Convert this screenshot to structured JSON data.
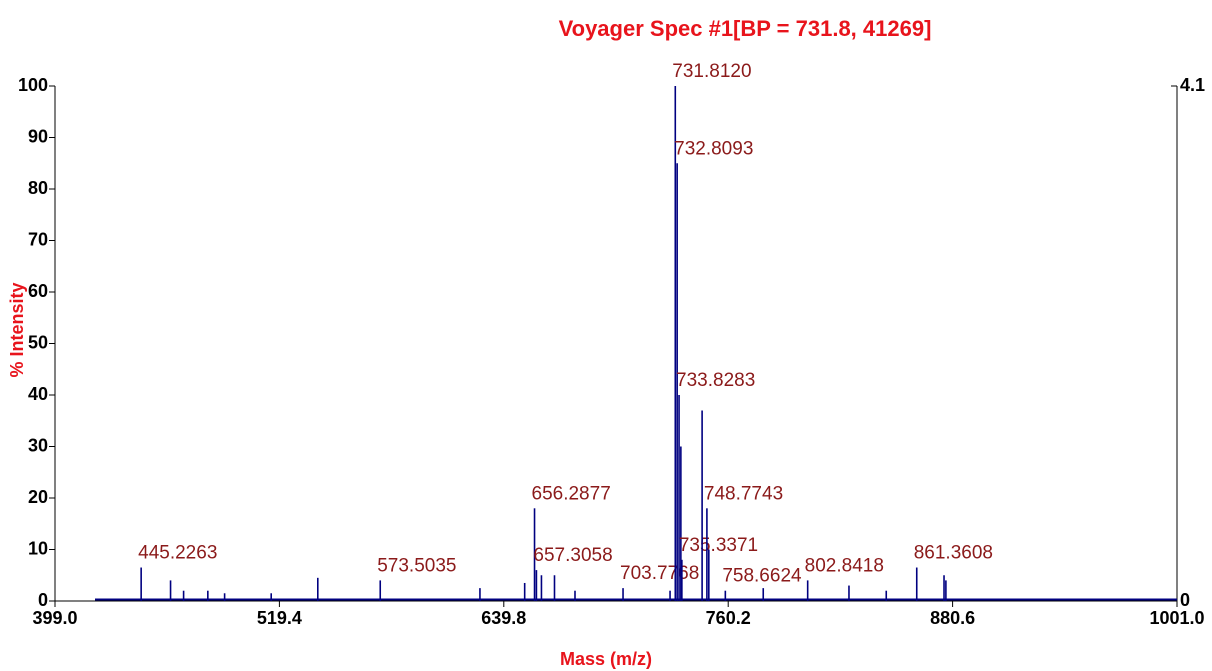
{
  "chart_data": {
    "type": "spectrum",
    "title": "Voyager Spec #1[BP = 731.8, 41269]",
    "x_label": "Mass (m/z)",
    "y_label": "% Intensity",
    "color": "#000080",
    "x": [
      445.2263,
      461.0,
      468.0,
      481.0,
      490.0,
      515.0,
      540.0,
      573.5035,
      627.0,
      651.0,
      656.2877,
      657.3058,
      660.0,
      667.0,
      678.0,
      703.7768,
      729.0,
      731.812,
      732.8093,
      733.8283,
      734.8,
      735.3371,
      746.2,
      748.7743,
      749.8,
      758.6624,
      779.0,
      802.8418,
      825.0,
      845.0,
      861.3608,
      876.0,
      877.0
    ],
    "values": [
      6.5,
      4,
      2,
      2,
      1.5,
      1.5,
      4.5,
      4,
      2.5,
      3.5,
      18,
      6,
      5,
      5,
      2,
      2.5,
      2,
      100,
      85,
      40,
      30,
      8,
      37,
      18,
      10,
      2,
      2.5,
      4,
      3,
      2,
      6.5,
      5,
      4
    ],
    "x_labels": [
      "445.2263",
      null,
      null,
      null,
      null,
      null,
      null,
      "573.5035",
      null,
      null,
      "656.2877",
      "657.3058",
      null,
      null,
      null,
      "703.7768",
      null,
      "731.8120",
      "732.8093",
      "733.8283",
      null,
      "735.3371",
      null,
      "748.7743",
      null,
      "758.6624",
      null,
      "802.8418",
      null,
      null,
      "861.3608",
      null,
      null
    ],
    "xlim": [
      399.0,
      1001.0
    ],
    "xticks": [
      {
        "value": 399,
        "label": "399.0"
      },
      {
        "value": 519.4,
        "label": "519.4"
      },
      {
        "value": 639.8,
        "label": "639.8"
      },
      {
        "value": 760.2,
        "label": "760.2"
      },
      {
        "value": 880.6,
        "label": "880.6"
      },
      {
        "value": 1001,
        "label": "1001.0"
      }
    ],
    "ylim": [
      0,
      100
    ],
    "yticks": [
      0,
      10,
      20,
      30,
      40,
      50,
      60,
      70,
      80,
      90,
      100
    ],
    "y2lim": [
      0,
      4.1
    ],
    "y2ticks": [
      0,
      4.1
    ]
  }
}
